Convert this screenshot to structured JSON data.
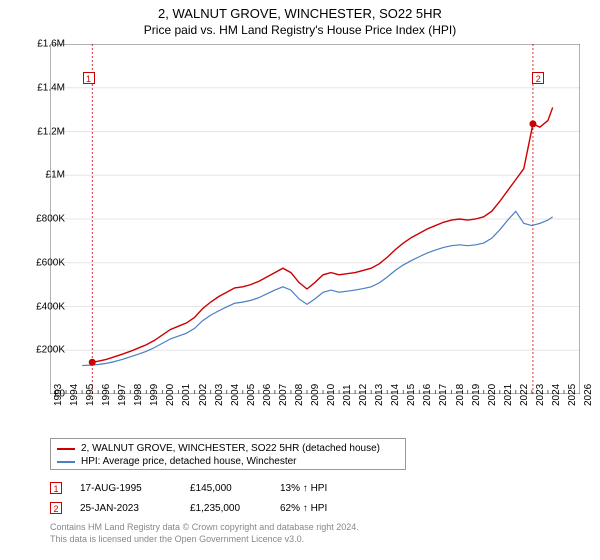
{
  "title": "2, WALNUT GROVE, WINCHESTER, SO22 5HR",
  "subtitle": "Price paid vs. HM Land Registry's House Price Index (HPI)",
  "chart": {
    "type": "line",
    "background_color": "#ffffff",
    "plot_bg": "#ffffff",
    "grid_color": "#e6e6e6",
    "axis_color": "#666666",
    "x_min": 1993,
    "x_max": 2026,
    "x_ticks": [
      1993,
      1994,
      1995,
      1996,
      1997,
      1998,
      1999,
      2000,
      2001,
      2002,
      2003,
      2004,
      2005,
      2006,
      2007,
      2008,
      2009,
      2010,
      2011,
      2012,
      2013,
      2014,
      2015,
      2016,
      2017,
      2018,
      2019,
      2020,
      2021,
      2022,
      2023,
      2024,
      2025,
      2026
    ],
    "y_min": 0,
    "y_max": 1600000,
    "y_ticks": [
      {
        "v": 0,
        "label": "£0"
      },
      {
        "v": 200000,
        "label": "£200K"
      },
      {
        "v": 400000,
        "label": "£400K"
      },
      {
        "v": 600000,
        "label": "£600K"
      },
      {
        "v": 800000,
        "label": "£800K"
      },
      {
        "v": 1000000,
        "label": "£1M"
      },
      {
        "v": 1200000,
        "label": "£1.2M"
      },
      {
        "v": 1400000,
        "label": "£1.4M"
      },
      {
        "v": 1600000,
        "label": "£1.6M"
      }
    ],
    "series": [
      {
        "name": "2, WALNUT GROVE, WINCHESTER, SO22 5HR (detached house)",
        "color": "#cc0000",
        "width": 1.4,
        "data": [
          [
            1995.63,
            145000
          ],
          [
            1996.0,
            150000
          ],
          [
            1996.5,
            158000
          ],
          [
            1997.0,
            170000
          ],
          [
            1997.5,
            182000
          ],
          [
            1998.0,
            195000
          ],
          [
            1998.5,
            210000
          ],
          [
            1999.0,
            225000
          ],
          [
            1999.5,
            245000
          ],
          [
            2000.0,
            270000
          ],
          [
            2000.5,
            295000
          ],
          [
            2001.0,
            310000
          ],
          [
            2001.5,
            325000
          ],
          [
            2002.0,
            350000
          ],
          [
            2002.5,
            390000
          ],
          [
            2003.0,
            420000
          ],
          [
            2003.5,
            445000
          ],
          [
            2004.0,
            465000
          ],
          [
            2004.5,
            485000
          ],
          [
            2005.0,
            490000
          ],
          [
            2005.5,
            500000
          ],
          [
            2006.0,
            515000
          ],
          [
            2006.5,
            535000
          ],
          [
            2007.0,
            555000
          ],
          [
            2007.5,
            575000
          ],
          [
            2008.0,
            555000
          ],
          [
            2008.5,
            510000
          ],
          [
            2009.0,
            480000
          ],
          [
            2009.5,
            510000
          ],
          [
            2010.0,
            545000
          ],
          [
            2010.5,
            555000
          ],
          [
            2011.0,
            545000
          ],
          [
            2011.5,
            550000
          ],
          [
            2012.0,
            555000
          ],
          [
            2012.5,
            565000
          ],
          [
            2013.0,
            575000
          ],
          [
            2013.5,
            595000
          ],
          [
            2014.0,
            625000
          ],
          [
            2014.5,
            660000
          ],
          [
            2015.0,
            690000
          ],
          [
            2015.5,
            715000
          ],
          [
            2016.0,
            735000
          ],
          [
            2016.5,
            755000
          ],
          [
            2017.0,
            770000
          ],
          [
            2017.5,
            785000
          ],
          [
            2018.0,
            795000
          ],
          [
            2018.5,
            800000
          ],
          [
            2019.0,
            795000
          ],
          [
            2019.5,
            800000
          ],
          [
            2020.0,
            810000
          ],
          [
            2020.5,
            835000
          ],
          [
            2021.0,
            880000
          ],
          [
            2021.5,
            930000
          ],
          [
            2022.0,
            980000
          ],
          [
            2022.5,
            1030000
          ],
          [
            2023.0,
            1210000
          ],
          [
            2023.07,
            1235000
          ],
          [
            2023.5,
            1220000
          ],
          [
            2024.0,
            1250000
          ],
          [
            2024.3,
            1310000
          ]
        ]
      },
      {
        "name": "HPI: Average price, detached house, Winchester",
        "color": "#4a7fc4",
        "width": 1.2,
        "data": [
          [
            1995.0,
            130000
          ],
          [
            1995.5,
            132000
          ],
          [
            1996.0,
            135000
          ],
          [
            1996.5,
            140000
          ],
          [
            1997.0,
            148000
          ],
          [
            1997.5,
            158000
          ],
          [
            1998.0,
            170000
          ],
          [
            1998.5,
            182000
          ],
          [
            1999.0,
            195000
          ],
          [
            1999.5,
            212000
          ],
          [
            2000.0,
            232000
          ],
          [
            2000.5,
            252000
          ],
          [
            2001.0,
            265000
          ],
          [
            2001.5,
            278000
          ],
          [
            2002.0,
            300000
          ],
          [
            2002.5,
            335000
          ],
          [
            2003.0,
            360000
          ],
          [
            2003.5,
            380000
          ],
          [
            2004.0,
            398000
          ],
          [
            2004.5,
            415000
          ],
          [
            2005.0,
            420000
          ],
          [
            2005.5,
            428000
          ],
          [
            2006.0,
            440000
          ],
          [
            2006.5,
            458000
          ],
          [
            2007.0,
            475000
          ],
          [
            2007.5,
            490000
          ],
          [
            2008.0,
            475000
          ],
          [
            2008.5,
            435000
          ],
          [
            2009.0,
            410000
          ],
          [
            2009.5,
            435000
          ],
          [
            2010.0,
            465000
          ],
          [
            2010.5,
            475000
          ],
          [
            2011.0,
            465000
          ],
          [
            2011.5,
            470000
          ],
          [
            2012.0,
            475000
          ],
          [
            2012.5,
            482000
          ],
          [
            2013.0,
            490000
          ],
          [
            2013.5,
            508000
          ],
          [
            2014.0,
            535000
          ],
          [
            2014.5,
            565000
          ],
          [
            2015.0,
            590000
          ],
          [
            2015.5,
            610000
          ],
          [
            2016.0,
            628000
          ],
          [
            2016.5,
            645000
          ],
          [
            2017.0,
            658000
          ],
          [
            2017.5,
            670000
          ],
          [
            2018.0,
            678000
          ],
          [
            2018.5,
            682000
          ],
          [
            2019.0,
            678000
          ],
          [
            2019.5,
            682000
          ],
          [
            2020.0,
            690000
          ],
          [
            2020.5,
            712000
          ],
          [
            2021.0,
            750000
          ],
          [
            2021.5,
            795000
          ],
          [
            2022.0,
            835000
          ],
          [
            2022.5,
            780000
          ],
          [
            2023.0,
            770000
          ],
          [
            2023.5,
            780000
          ],
          [
            2024.0,
            795000
          ],
          [
            2024.3,
            810000
          ]
        ]
      }
    ],
    "markers": [
      {
        "n": "1",
        "x": 1995.63,
        "y": 145000,
        "color": "#cc0000",
        "label_x": 1995.4,
        "label_y": 1470000
      },
      {
        "n": "2",
        "x": 2023.07,
        "y": 1235000,
        "color": "#cc0000",
        "label_x": 2023.4,
        "label_y": 1470000
      }
    ],
    "vlines": [
      {
        "x": 1995.63,
        "color": "#cc0000",
        "dash": "2,2"
      },
      {
        "x": 2023.07,
        "color": "#cc0000",
        "dash": "2,2"
      }
    ]
  },
  "legend": {
    "items": [
      {
        "label": "2, WALNUT GROVE, WINCHESTER, SO22 5HR (detached house)",
        "color": "#cc0000"
      },
      {
        "label": "HPI: Average price, detached house, Winchester",
        "color": "#4a7fc4"
      }
    ]
  },
  "sales": [
    {
      "n": "1",
      "color": "#cc0000",
      "date": "17-AUG-1995",
      "price": "£145,000",
      "delta": "13% ↑ HPI"
    },
    {
      "n": "2",
      "color": "#cc0000",
      "date": "25-JAN-2023",
      "price": "£1,235,000",
      "delta": "62% ↑ HPI"
    }
  ],
  "footer": {
    "line1": "Contains HM Land Registry data © Crown copyright and database right 2024.",
    "line2": "This data is licensed under the Open Government Licence v3.0."
  }
}
